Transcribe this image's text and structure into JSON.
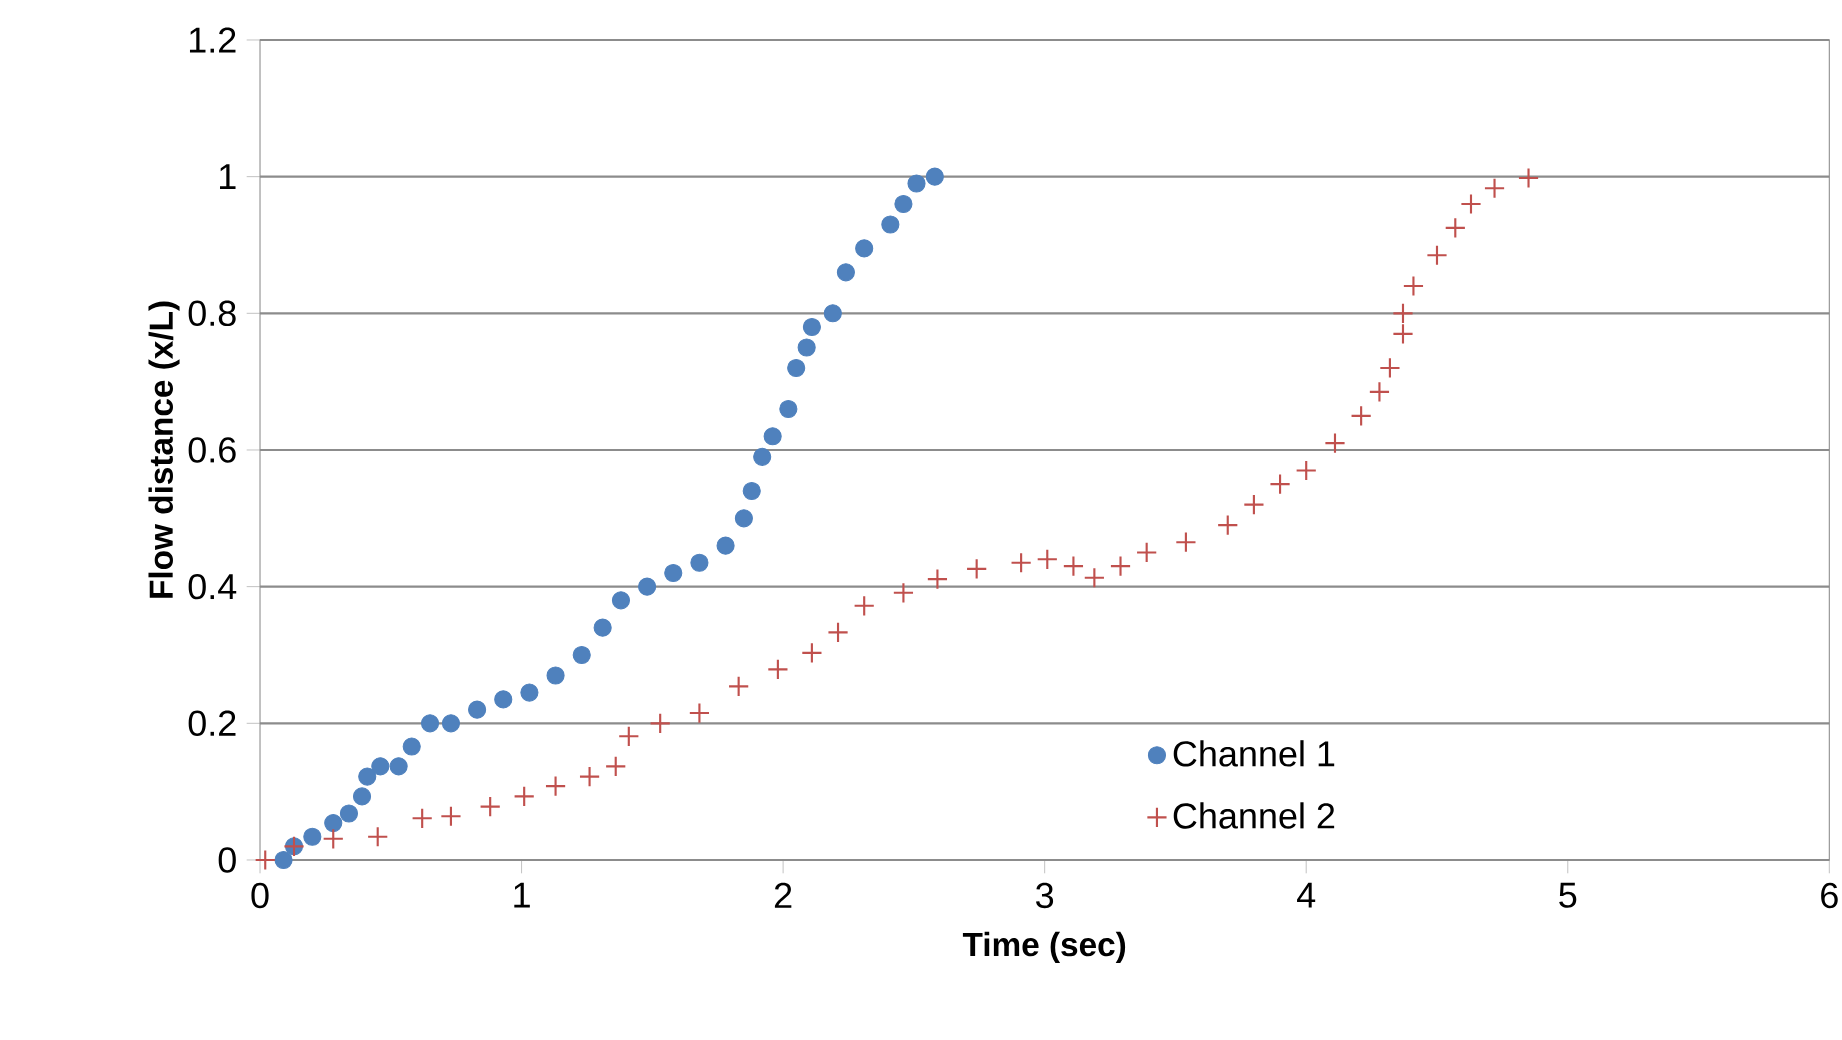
{
  "chart_data": {
    "type": "scatter",
    "xlabel": "Time (sec)",
    "ylabel": "Flow distance (x/L)",
    "xlim": [
      0,
      6
    ],
    "xticks": [
      0,
      1,
      2,
      3,
      4,
      5,
      6
    ],
    "ylim": [
      0,
      1.2
    ],
    "yticks": [
      0,
      0.2,
      0.4,
      0.6,
      0.8,
      1,
      1.2
    ],
    "grid": "y",
    "legend": "bottom",
    "series": [
      {
        "name": "Channel 1",
        "color": "#4f81bd",
        "marker": "circle",
        "x": [
          0.09,
          0.13,
          0.2,
          0.28,
          0.34,
          0.39,
          0.41,
          0.46,
          0.53,
          0.58,
          0.65,
          0.73,
          0.83,
          0.93,
          1.03,
          1.13,
          1.23,
          1.31,
          1.38,
          1.48,
          1.58,
          1.68,
          1.78,
          1.85,
          1.88,
          1.92,
          1.96,
          2.02,
          2.05,
          2.09,
          2.11,
          2.19,
          2.24,
          2.31,
          2.41,
          2.46,
          2.51,
          2.58
        ],
        "values": [
          0,
          0.02,
          0.034,
          0.054,
          0.068,
          0.093,
          0.122,
          0.137,
          0.137,
          0.166,
          0.2,
          0.2,
          0.22,
          0.235,
          0.245,
          0.27,
          0.3,
          0.34,
          0.38,
          0.4,
          0.42,
          0.435,
          0.46,
          0.5,
          0.54,
          0.59,
          0.62,
          0.66,
          0.72,
          0.75,
          0.78,
          0.8,
          0.86,
          0.895,
          0.93,
          0.96,
          0.99,
          1.0
        ]
      },
      {
        "name": "Channel 2",
        "color": "#c0504d",
        "marker": "cross",
        "x": [
          0.02,
          0.13,
          0.28,
          0.45,
          0.62,
          0.73,
          0.88,
          1.01,
          1.13,
          1.26,
          1.36,
          1.41,
          1.53,
          1.68,
          1.83,
          1.98,
          2.11,
          2.21,
          2.31,
          2.46,
          2.59,
          2.74,
          2.91,
          3.01,
          3.11,
          3.19,
          3.29,
          3.39,
          3.54,
          3.7,
          3.8,
          3.9,
          4.0,
          4.11,
          4.21,
          4.28,
          4.32,
          4.37,
          4.37,
          4.41,
          4.5,
          4.57,
          4.63,
          4.72,
          4.85
        ],
        "values": [
          0,
          0.02,
          0.031,
          0.034,
          0.061,
          0.064,
          0.078,
          0.093,
          0.108,
          0.122,
          0.137,
          0.181,
          0.2,
          0.215,
          0.254,
          0.279,
          0.303,
          0.333,
          0.372,
          0.391,
          0.411,
          0.426,
          0.435,
          0.44,
          0.43,
          0.413,
          0.43,
          0.45,
          0.465,
          0.49,
          0.52,
          0.55,
          0.57,
          0.61,
          0.65,
          0.685,
          0.72,
          0.77,
          0.8,
          0.84,
          0.885,
          0.925,
          0.96,
          0.983,
          0.998
        ]
      }
    ]
  }
}
